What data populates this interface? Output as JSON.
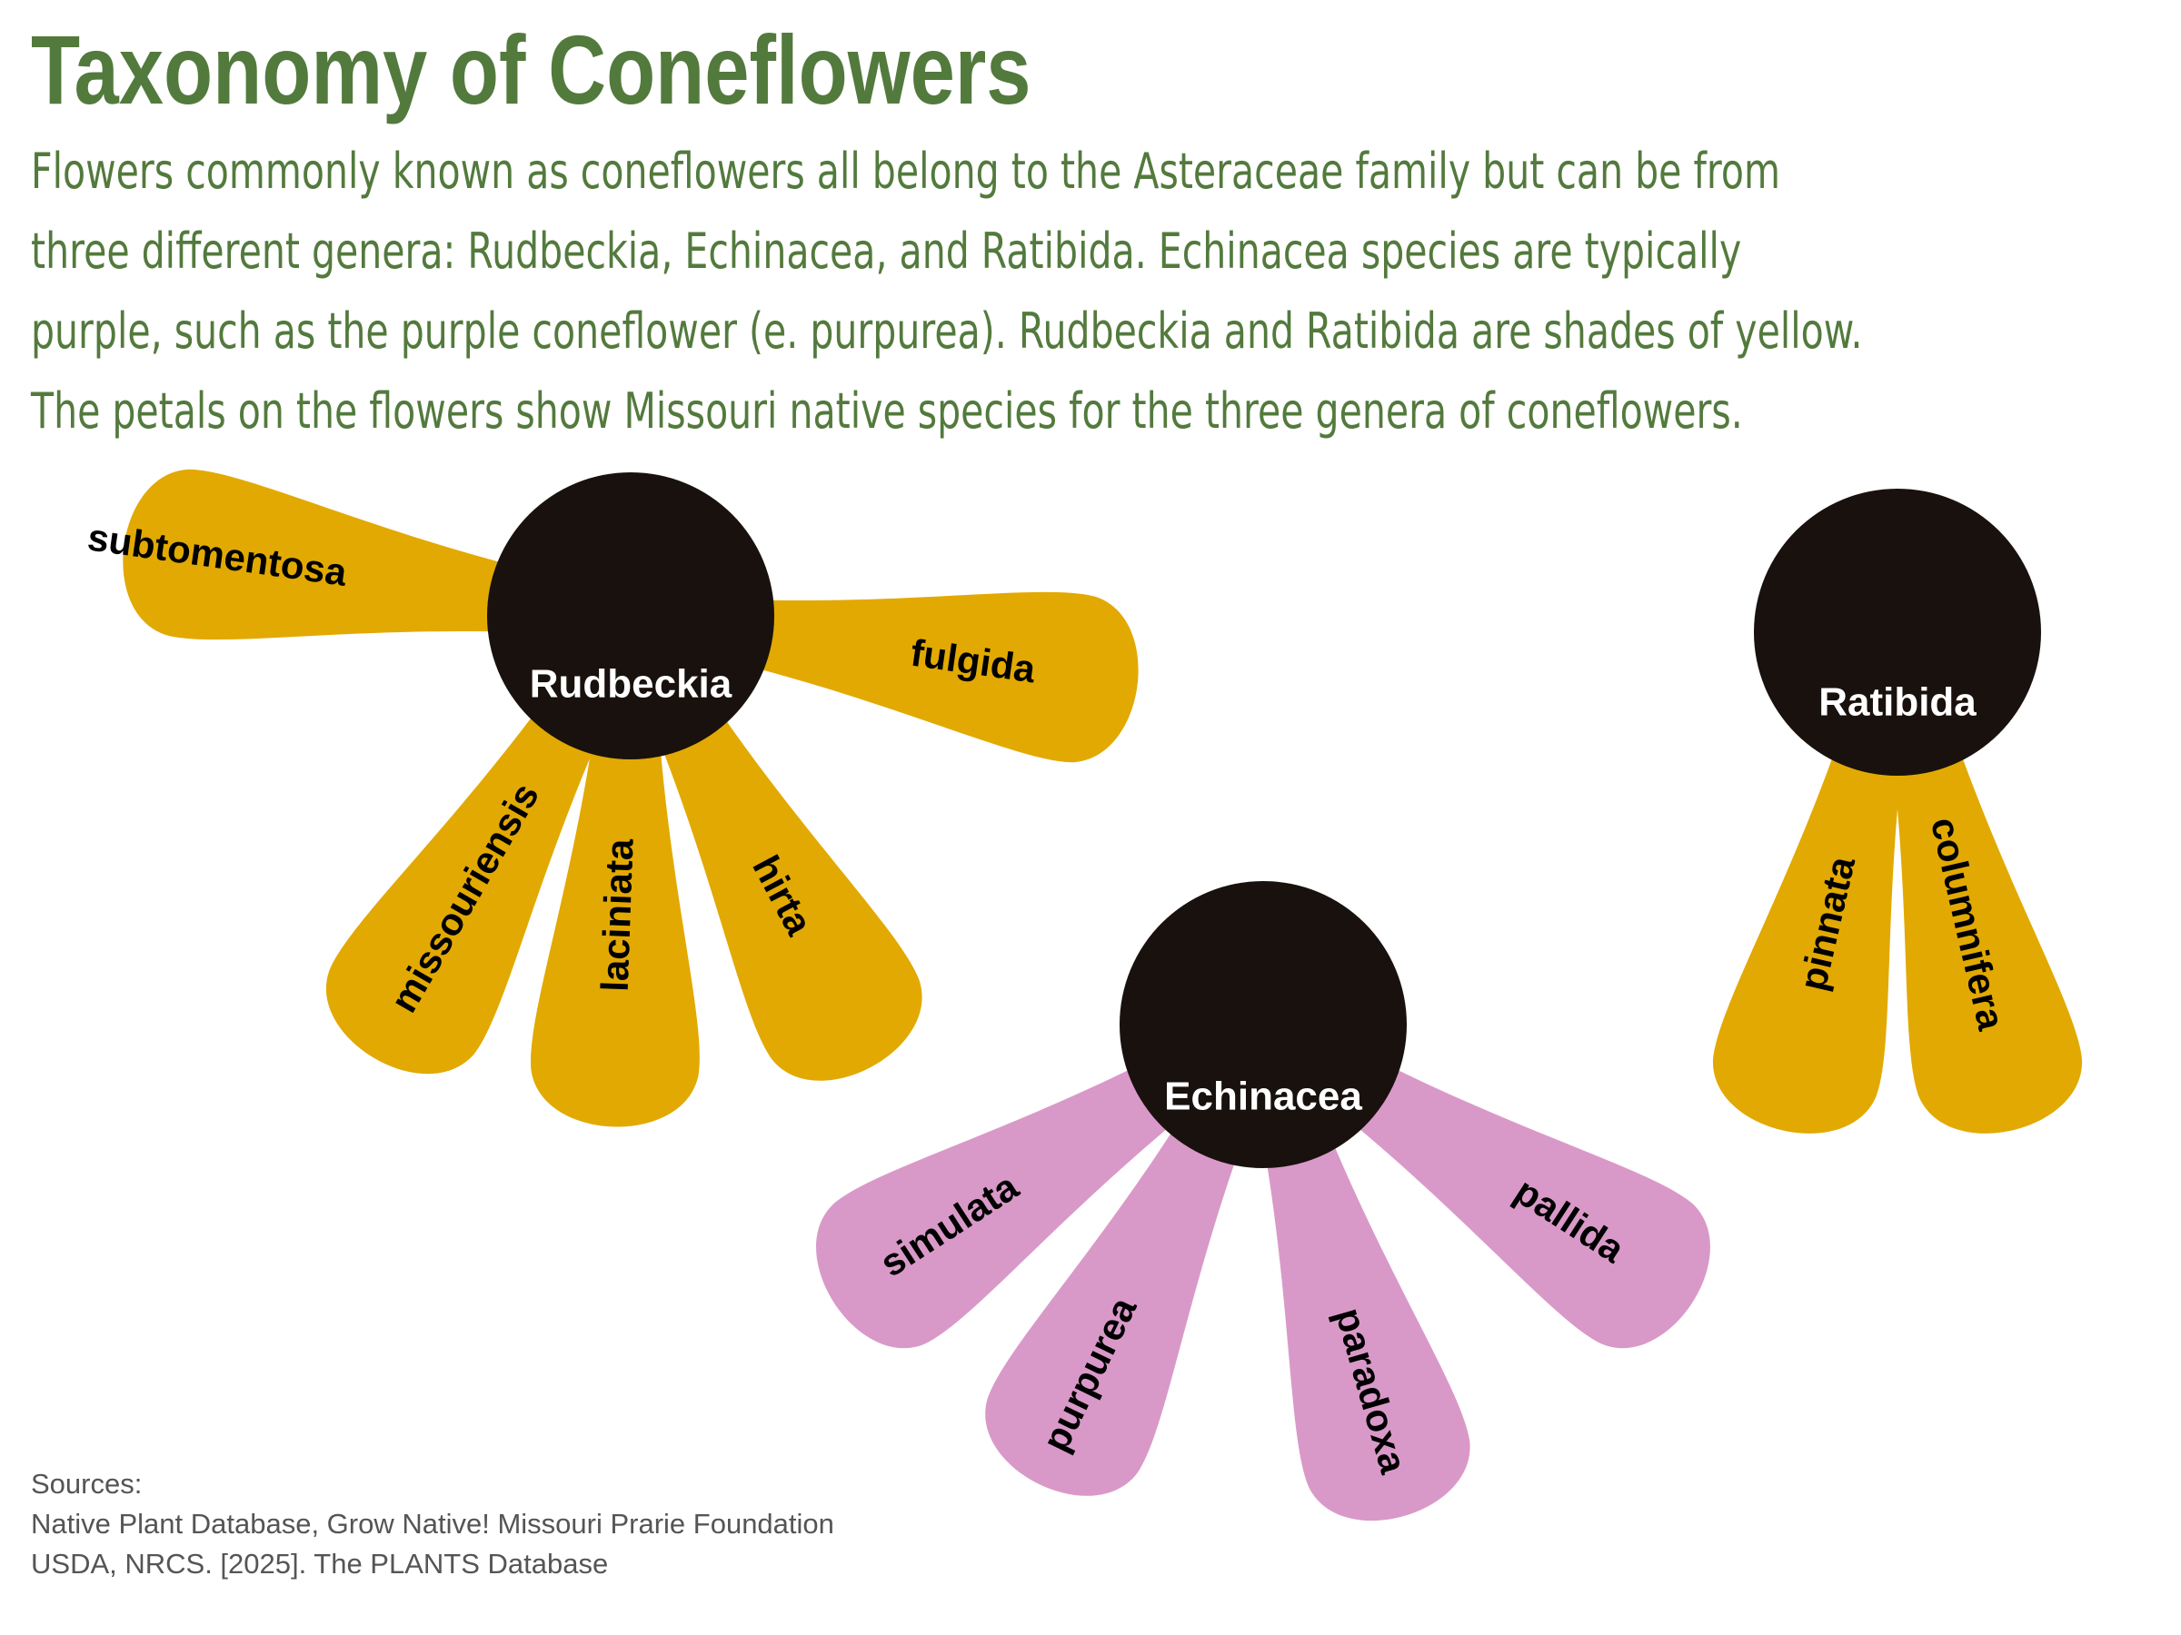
{
  "title": "Taxonomy of Coneflowers",
  "subtitle_lines": [
    "Flowers commonly known as coneflowers all belong to the Asteraceae family but can be from",
    "three different genera: Rudbeckia, Echinacea, and Ratibida. Echinacea species are typically",
    "purple, such as the purple coneflower (e. purpurea). Rudbeckia and Ratibida are shades of yellow.",
    "The petals on the flowers show Missouri native species for the three genera of coneflowers."
  ],
  "colors": {
    "accent_green": "#537a3d",
    "yellow_petal": "#e2a902",
    "purple_petal": "#d999c8",
    "center": "#18110d"
  },
  "flowers": [
    {
      "genus": "Rudbeckia",
      "petal_color": "#e2a902",
      "species": [
        "subtomentosa",
        "missouriensis",
        "laciniata",
        "hirta",
        "fulgida"
      ]
    },
    {
      "genus": "Echinacea",
      "petal_color": "#d999c8",
      "species": [
        "simulata",
        "purpurea",
        "paradoxa",
        "pallida"
      ]
    },
    {
      "genus": "Ratibida",
      "petal_color": "#e2a902",
      "species": [
        "pinnata",
        "columnifera"
      ]
    }
  ],
  "sources": {
    "heading": "Sources:",
    "lines": [
      "Native Plant Database, Grow Native! Missouri Prarie Foundation",
      "USDA, NRCS. [2025]. The PLANTS Database"
    ]
  }
}
